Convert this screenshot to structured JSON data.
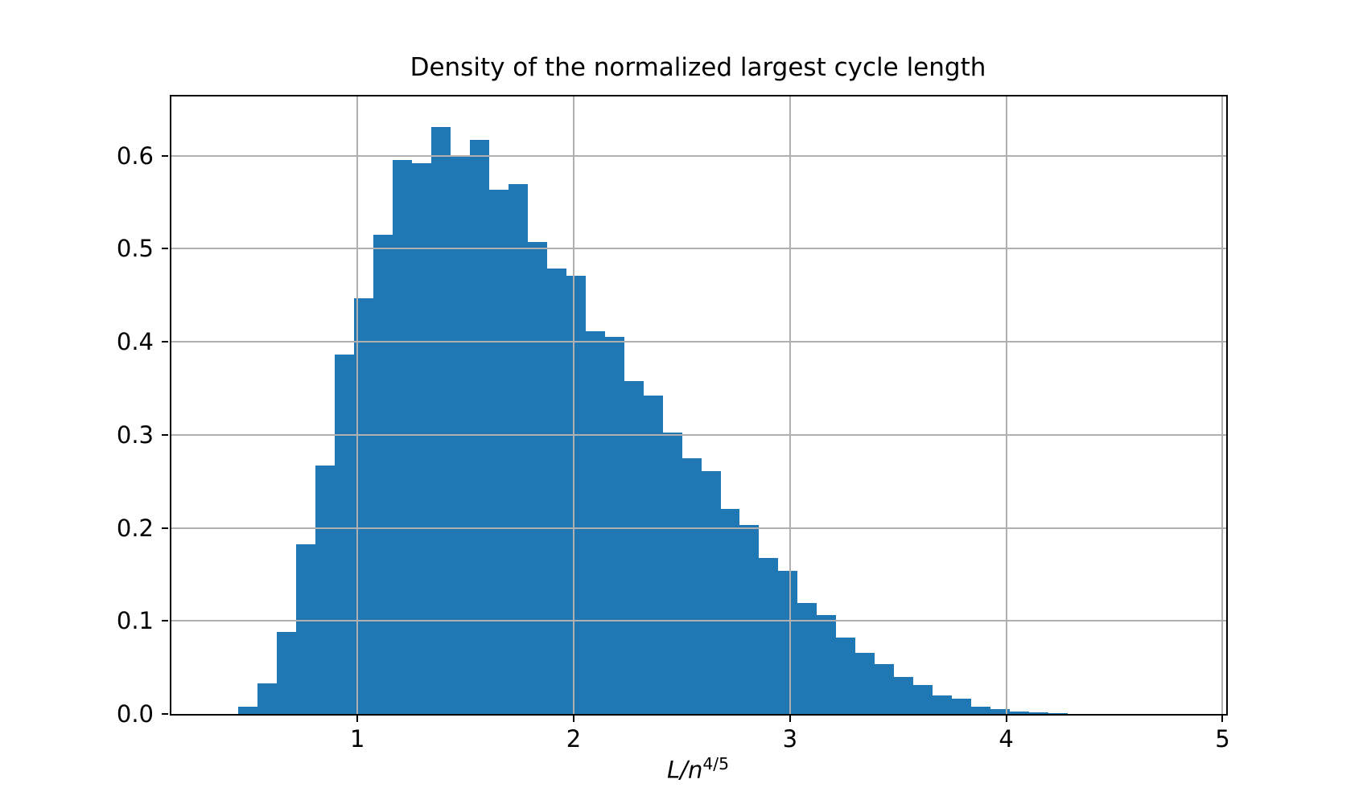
{
  "title": "Density of the normalized largest cycle length",
  "xlabel": {
    "base_italic": "L/n",
    "superscript": "4/5"
  },
  "chart_data": {
    "type": "bar",
    "subtype": "histogram-density",
    "title": "Density of the normalized largest cycle length",
    "xlabel": "L/n^{4/5}",
    "ylabel": "",
    "grid": true,
    "grid_above_bars": true,
    "bar_color": "#1f77b4",
    "grid_color": "#b0b0b0",
    "spine_color": "#000000",
    "xlim": [
      0.14,
      5.017
    ],
    "ylim": [
      0,
      0.6635
    ],
    "xticks": [
      1,
      2,
      3,
      4,
      5
    ],
    "ytick_labels": [
      "0.0",
      "0.1",
      "0.2",
      "0.3",
      "0.4",
      "0.5",
      "0.6"
    ],
    "bin_start": 0.449,
    "bin_width": 0.0892,
    "values": [
      0.008,
      0.033,
      0.088,
      0.182,
      0.267,
      0.386,
      0.447,
      0.515,
      0.595,
      0.592,
      0.631,
      0.599,
      0.617,
      0.563,
      0.569,
      0.507,
      0.479,
      0.471,
      0.411,
      0.405,
      0.358,
      0.342,
      0.302,
      0.275,
      0.261,
      0.22,
      0.203,
      0.168,
      0.154,
      0.119,
      0.106,
      0.082,
      0.066,
      0.054,
      0.04,
      0.031,
      0.02,
      0.016,
      0.008,
      0.005,
      0.003,
      0.002,
      0.001
    ]
  }
}
